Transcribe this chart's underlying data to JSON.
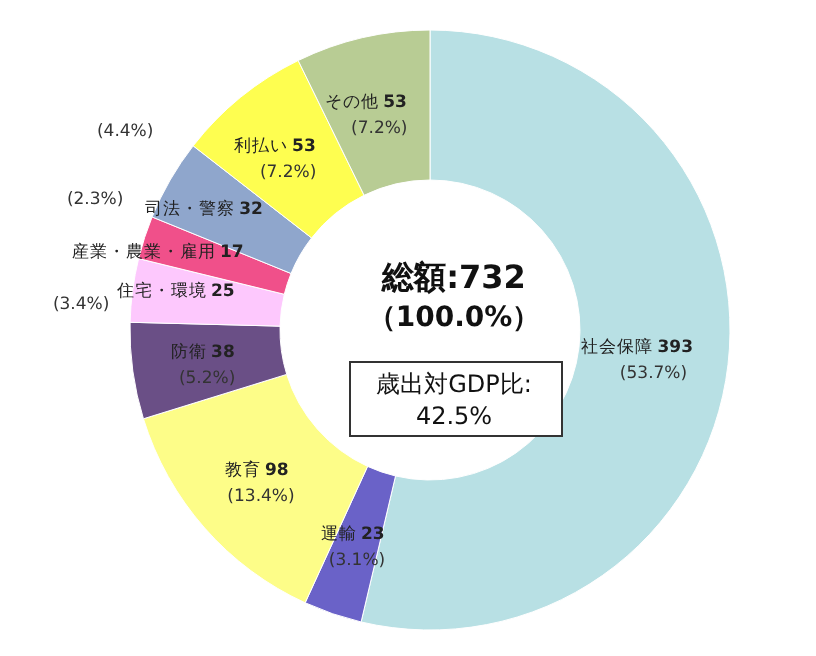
{
  "chart_data": {
    "type": "donut",
    "categories": [
      "社会保障",
      "運輸",
      "教育",
      "防衛",
      "住宅・環境",
      "産業・農業・雇用",
      "司法・警察",
      "利払い",
      "その他"
    ],
    "values": [
      393,
      23,
      98,
      38,
      25,
      17,
      32,
      53,
      53
    ],
    "colors": [
      "#b8e0e4",
      "#6a62c8",
      "#fdfd88",
      "#6a4f86",
      "#fdc8fd",
      "#f0508a",
      "#8fa6cc",
      "#fefe50",
      "#b8cc94"
    ],
    "data_labels": true,
    "annotations": [
      "総額:732",
      "（100.0%）",
      "歳出対GDP比:",
      "42.5%",
      {
        "text": "(53.7%)",
        "x": "社会保障"
      },
      {
        "text": "(3.1%)",
        "x": "運輸"
      },
      {
        "text": "(13.4%)",
        "x": "教育"
      },
      {
        "text": "(5.2%)",
        "x": "防衛"
      },
      {
        "text": "(3.4%)",
        "x": "住宅・環境"
      },
      {
        "text": "(2.3%)",
        "x": "産業・農業・雇用"
      },
      {
        "text": "(4.4%)",
        "x": "司法・警察"
      },
      {
        "text": "(7.2%)",
        "x": "利払い"
      },
      {
        "text": "(7.2%)",
        "x": "その他"
      }
    ]
  }
}
